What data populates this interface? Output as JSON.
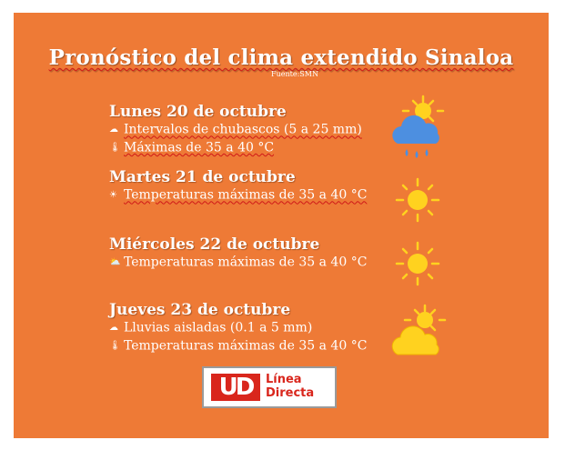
{
  "header": {
    "title": "Pronóstico del clima extendido Sinaloa",
    "source": "Fuente:SMN"
  },
  "days": [
    {
      "title": "Lunes 20 de octubre",
      "lines": [
        {
          "icon": "cloud-rain-icon",
          "text": "Intervalos de chubascos (5 a 25 mm)"
        },
        {
          "icon": "thermometer-icon",
          "text": "Máximas de 35 a 40 °C"
        }
      ],
      "weather_icon": "sun-behind-rain-cloud-icon"
    },
    {
      "title": "Martes 21 de octubre",
      "lines": [
        {
          "icon": "sun-icon",
          "text": "Temperaturas máximas de 35 a 40 °C"
        }
      ],
      "weather_icon": "sun-icon"
    },
    {
      "title": "Miércoles 22 de octubre",
      "lines": [
        {
          "icon": "sun-cloud-icon",
          "text": "Temperaturas máximas de 35 a 40 °C"
        }
      ],
      "weather_icon": "sun-icon"
    },
    {
      "title": "Jueves 23 de octubre",
      "lines": [
        {
          "icon": "cloud-rain-icon",
          "text": "Lluvias aisladas (0.1 a 5 mm)"
        },
        {
          "icon": "thermometer-icon",
          "text": "Temperaturas máximas de 35 a 40 °C"
        }
      ],
      "weather_icon": "sun-behind-cloud-icon"
    }
  ],
  "logo": {
    "mark": "UD",
    "line1": "Línea",
    "line2": "Directa"
  },
  "colors": {
    "background": "#ee7a36",
    "sun": "#ffd21f",
    "cloud": "#4d8fe0",
    "brand_red": "#d9261c"
  }
}
